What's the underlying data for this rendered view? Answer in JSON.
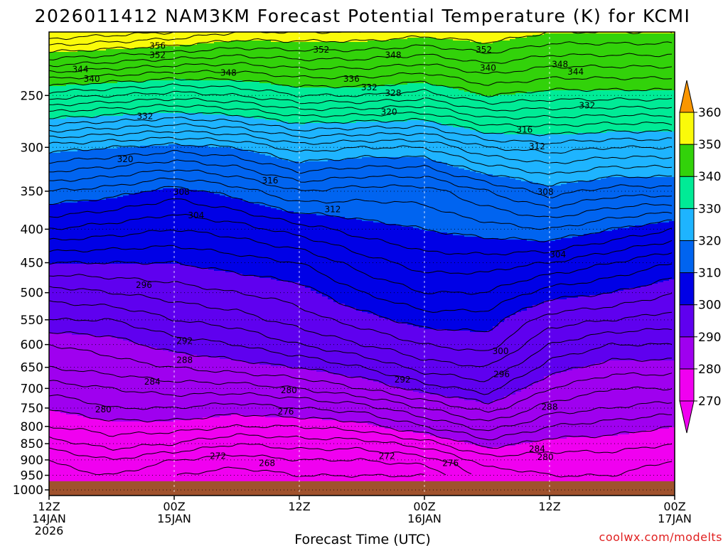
{
  "chart_data": {
    "type": "heatmap",
    "title": "2026011412 NAM3KM Forecast Potential Temperature (K) for KCMI",
    "xlabel": "Forecast Time (UTC)",
    "ylabel": "Pressure (hPa)",
    "credit": "coolwx.com/modelts",
    "x_range_hours": [
      0,
      60
    ],
    "y_range_hPa": [
      200,
      1020
    ],
    "y_scale": "log-pressure (inverted)",
    "y_ticks": [
      "250",
      "300",
      "350",
      "400",
      "450",
      "500",
      "550",
      "600",
      "650",
      "700",
      "750",
      "800",
      "850",
      "900",
      "950",
      "1000"
    ],
    "x_ticks": [
      {
        "hour": 0,
        "l1": "12Z",
        "l2": "14JAN",
        "l3": "2026"
      },
      {
        "hour": 12,
        "l1": "00Z",
        "l2": "15JAN",
        "l3": ""
      },
      {
        "hour": 24,
        "l1": "12Z",
        "l2": "",
        "l3": ""
      },
      {
        "hour": 36,
        "l1": "00Z",
        "l2": "16JAN",
        "l3": ""
      },
      {
        "hour": 48,
        "l1": "12Z",
        "l2": "",
        "l3": ""
      },
      {
        "hour": 60,
        "l1": "00Z",
        "l2": "17JAN",
        "l3": ""
      }
    ],
    "colorbar": {
      "levels": [
        270,
        280,
        290,
        300,
        310,
        320,
        330,
        340,
        350,
        360
      ],
      "labels": [
        "270",
        "280",
        "290",
        "300",
        "310",
        "320",
        "330",
        "340",
        "350",
        "360"
      ],
      "colors": [
        "#f000f0",
        "#9f00ef",
        "#5f00ef",
        "#0000e6",
        "#0064f0",
        "#1eb4ff",
        "#00eb96",
        "#32d20a",
        "#fafa0a",
        "#fa9600"
      ],
      "under_color": "#f000f0",
      "over_color": "#fa9600"
    },
    "isentropes_K": [
      268,
      270,
      272,
      274,
      276,
      278,
      280,
      282,
      284,
      286,
      288,
      290,
      292,
      294,
      296,
      298,
      300,
      302,
      304,
      306,
      308,
      310,
      312,
      314,
      316,
      318,
      320,
      322,
      324,
      326,
      328,
      330,
      332,
      334,
      336,
      338,
      340,
      342,
      344,
      346,
      348,
      350,
      352,
      354,
      356,
      358
    ],
    "theta_profile_hPa": [
      200,
      250,
      300,
      350,
      400,
      450,
      500,
      550,
      600,
      650,
      700,
      750,
      800,
      850,
      900,
      950,
      1000
    ],
    "theta_profile_by_hour": {
      "hours": [
        0,
        6,
        12,
        18,
        24,
        30,
        36,
        42,
        48,
        54,
        60
      ],
      "values_K": [
        [
          356,
          337,
          321,
          312,
          306,
          300,
          295,
          292,
          288,
          286,
          283,
          280,
          278,
          275,
          272,
          271,
          271
        ],
        [
          355,
          336,
          320,
          311,
          305,
          300,
          296,
          292,
          289,
          287,
          284,
          282,
          279,
          277,
          274,
          272,
          271
        ],
        [
          354,
          335,
          319,
          309,
          304,
          300,
          297,
          294,
          291,
          288,
          285,
          282,
          279,
          276,
          272,
          270,
          270
        ],
        [
          352,
          336,
          320,
          311,
          305,
          301,
          298,
          295,
          292,
          289,
          285,
          281,
          278,
          274,
          271,
          269,
          269
        ],
        [
          352,
          338,
          323,
          314,
          307,
          302,
          299,
          297,
          294,
          290,
          286,
          282,
          278,
          275,
          272,
          270,
          270
        ],
        [
          352,
          338,
          322,
          313,
          309,
          305,
          302,
          299,
          296,
          292,
          288,
          283,
          279,
          275,
          272,
          270,
          270
        ],
        [
          351,
          337,
          322,
          313,
          310,
          307,
          304,
          301,
          298,
          295,
          291,
          286,
          282,
          277,
          273,
          270,
          270
        ],
        [
          352,
          340,
          326,
          316,
          311,
          307,
          304,
          301,
          299,
          296,
          293,
          289,
          285,
          281,
          277,
          275,
          275
        ],
        [
          350,
          339,
          327,
          319,
          312,
          306,
          301,
          297,
          294,
          291,
          288,
          285,
          282,
          279,
          277,
          276,
          276
        ],
        [
          350,
          339,
          326,
          317,
          310,
          304,
          300,
          296,
          292,
          289,
          286,
          284,
          281,
          279,
          277,
          276,
          276
        ],
        [
          350,
          339,
          326,
          317,
          308,
          302,
          298,
          295,
          292,
          289,
          286,
          283,
          280,
          278,
          276,
          275,
          275
        ]
      ]
    },
    "contour_labels": [
      {
        "text": "356",
        "hour": 10.4,
        "hPa": 210
      },
      {
        "text": "352",
        "hour": 10.4,
        "hPa": 217
      },
      {
        "text": "344",
        "hour": 3.0,
        "hPa": 228
      },
      {
        "text": "340",
        "hour": 4.1,
        "hPa": 236
      },
      {
        "text": "348",
        "hour": 17.2,
        "hPa": 231
      },
      {
        "text": "352",
        "hour": 26.1,
        "hPa": 213
      },
      {
        "text": "348",
        "hour": 33.0,
        "hPa": 217
      },
      {
        "text": "352",
        "hour": 41.7,
        "hPa": 213
      },
      {
        "text": "348",
        "hour": 49.0,
        "hPa": 224
      },
      {
        "text": "344",
        "hour": 50.5,
        "hPa": 230
      },
      {
        "text": "340",
        "hour": 42.1,
        "hPa": 227
      },
      {
        "text": "336",
        "hour": 29.0,
        "hPa": 236
      },
      {
        "text": "332",
        "hour": 30.7,
        "hPa": 243
      },
      {
        "text": "328",
        "hour": 33.0,
        "hPa": 248
      },
      {
        "text": "332",
        "hour": 51.6,
        "hPa": 259
      },
      {
        "text": "332",
        "hour": 9.2,
        "hPa": 269
      },
      {
        "text": "320",
        "hour": 32.6,
        "hPa": 265
      },
      {
        "text": "316",
        "hour": 45.6,
        "hPa": 282
      },
      {
        "text": "312",
        "hour": 46.8,
        "hPa": 299
      },
      {
        "text": "320",
        "hour": 7.3,
        "hPa": 313
      },
      {
        "text": "316",
        "hour": 21.2,
        "hPa": 337
      },
      {
        "text": "308",
        "hour": 12.7,
        "hPa": 351
      },
      {
        "text": "312",
        "hour": 27.2,
        "hPa": 373
      },
      {
        "text": "308",
        "hour": 47.6,
        "hPa": 351
      },
      {
        "text": "304",
        "hour": 14.1,
        "hPa": 381
      },
      {
        "text": "304",
        "hour": 48.8,
        "hPa": 437
      },
      {
        "text": "296",
        "hour": 9.1,
        "hPa": 487
      },
      {
        "text": "300",
        "hour": 43.3,
        "hPa": 614
      },
      {
        "text": "292",
        "hour": 13.0,
        "hPa": 592
      },
      {
        "text": "288",
        "hour": 13.0,
        "hPa": 634
      },
      {
        "text": "296",
        "hour": 43.4,
        "hPa": 666
      },
      {
        "text": "292",
        "hour": 33.9,
        "hPa": 679
      },
      {
        "text": "284",
        "hour": 9.9,
        "hPa": 684
      },
      {
        "text": "280",
        "hour": 23.0,
        "hPa": 705
      },
      {
        "text": "288",
        "hour": 48.0,
        "hPa": 747
      },
      {
        "text": "280",
        "hour": 5.2,
        "hPa": 754
      },
      {
        "text": "276",
        "hour": 22.7,
        "hPa": 760
      },
      {
        "text": "284",
        "hour": 46.8,
        "hPa": 866
      },
      {
        "text": "280",
        "hour": 47.6,
        "hPa": 891
      },
      {
        "text": "272",
        "hour": 16.2,
        "hPa": 888
      },
      {
        "text": "268",
        "hour": 20.9,
        "hPa": 910
      },
      {
        "text": "272",
        "hour": 32.4,
        "hPa": 888
      },
      {
        "text": "276",
        "hour": 38.5,
        "hPa": 910
      }
    ],
    "ground_color": "#a0522d",
    "ground_below_hPa": 970
  }
}
